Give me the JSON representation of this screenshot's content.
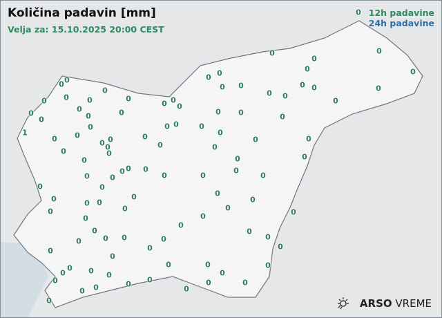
{
  "header": {
    "title": "Količina padavin [mm]",
    "valid_for": "Velja za: 15.10.2025 20:00 CEST"
  },
  "legend": {
    "label_12h": "12h padavine",
    "label_24h": "24h padavine",
    "color_12h": "#2e8a5f",
    "color_24h": "#2a6fa8"
  },
  "logo": {
    "brand": "ARSO",
    "product": "VREME",
    "icon": "sun-icon"
  },
  "stations_12h_values": [
    "0",
    "0",
    "0",
    "0",
    "0",
    "0",
    "0",
    "0",
    "0",
    "0",
    "0",
    "0",
    "0",
    "0",
    "0",
    "0",
    "0",
    "0",
    "0",
    "0",
    "0",
    "0",
    "0",
    "0",
    "0",
    "0",
    "0",
    "0",
    "0",
    "0",
    "0",
    "0",
    "0",
    "0",
    "0",
    "0",
    "0",
    "0",
    "1",
    "0",
    "0",
    "0",
    "0",
    "0",
    "0",
    "0",
    "0",
    "0",
    "0",
    "0",
    "0",
    "0",
    "0",
    "0",
    "0",
    "0",
    "0",
    "0",
    "0",
    "0",
    "0",
    "0",
    "0",
    "0",
    "0",
    "0",
    "0",
    "0",
    "0",
    "0",
    "0",
    "0",
    "0",
    "0",
    "0",
    "0",
    "0",
    "0",
    "0",
    "0",
    "0",
    "0",
    "0",
    "0",
    "0",
    "0",
    "0",
    "0",
    "0",
    "0",
    "0",
    "0",
    "0",
    "0",
    "0",
    "0",
    "0",
    "0",
    "0",
    "0",
    "0",
    "0",
    "0",
    "0",
    "0",
    "0",
    "0",
    "0",
    "0",
    "0",
    "0"
  ]
}
